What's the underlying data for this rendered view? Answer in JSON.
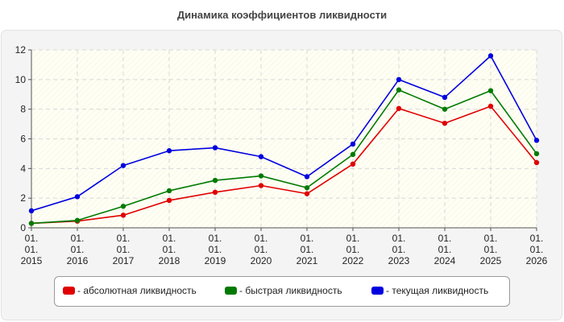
{
  "chart_data": {
    "type": "line",
    "title": "Динамика коэффициентов ликвидности",
    "x_labels": [
      [
        "01.",
        "01.",
        "2015"
      ],
      [
        "01.",
        "01.",
        "2016"
      ],
      [
        "01.",
        "01.",
        "2017"
      ],
      [
        "01.",
        "01.",
        "2018"
      ],
      [
        "01.",
        "01.",
        "2019"
      ],
      [
        "01.",
        "01.",
        "2020"
      ],
      [
        "01.",
        "01.",
        "2021"
      ],
      [
        "01.",
        "01.",
        "2022"
      ],
      [
        "01.",
        "01.",
        "2023"
      ],
      [
        "01.",
        "01.",
        "2024"
      ],
      [
        "01.",
        "01.",
        "2025"
      ],
      [
        "01.",
        "01.",
        "2026"
      ]
    ],
    "y_ticks": [
      0,
      2,
      4,
      6,
      8,
      10,
      12
    ],
    "ylim": [
      0,
      12
    ],
    "grid": true,
    "legend_position": "bottom",
    "series": [
      {
        "name": "- абсолютная ликвидность",
        "color": "#e00000",
        "values": [
          0.3,
          0.45,
          0.85,
          1.85,
          2.4,
          2.85,
          2.3,
          4.3,
          8.05,
          7.05,
          8.2,
          4.4
        ]
      },
      {
        "name": "- быстрая ликвидность",
        "color": "#007a00",
        "values": [
          0.3,
          0.5,
          1.45,
          2.5,
          3.2,
          3.5,
          2.7,
          4.95,
          9.3,
          8.0,
          9.25,
          5.0
        ]
      },
      {
        "name": "- текущая ликвидность",
        "color": "#0000e0",
        "values": [
          1.15,
          2.1,
          4.2,
          5.2,
          5.4,
          4.8,
          3.45,
          5.65,
          10.0,
          8.8,
          11.6,
          5.9
        ]
      }
    ]
  }
}
